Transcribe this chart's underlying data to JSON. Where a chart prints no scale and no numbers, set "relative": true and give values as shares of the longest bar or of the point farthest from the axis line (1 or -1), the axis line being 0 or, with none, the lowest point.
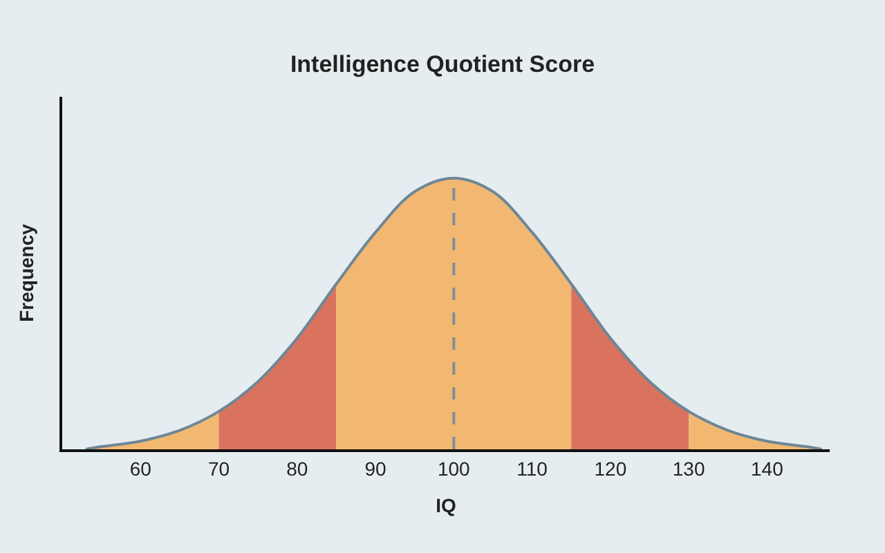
{
  "chart_data": {
    "type": "area",
    "title": "Intelligence Quotient Score",
    "xlabel": "IQ",
    "ylabel": "Frequency",
    "relative": true,
    "xlim": [
      50,
      148
    ],
    "xticks": [
      60,
      70,
      80,
      90,
      100,
      110,
      120,
      130,
      140
    ],
    "grid": false,
    "series": [
      {
        "color": "#f2b872",
        "x": [
          53,
          55,
          60,
          65,
          70
        ],
        "values": [
          0,
          0.01,
          0.03,
          0.07,
          0.14
        ]
      },
      {
        "color": "#d9735e",
        "x": [
          70,
          75,
          80,
          85
        ],
        "values": [
          0.14,
          0.25,
          0.41,
          0.61
        ]
      },
      {
        "color": "#f2b872",
        "x": [
          85,
          90,
          95,
          100,
          105,
          110,
          115
        ],
        "values": [
          0.61,
          0.8,
          0.95,
          1,
          0.95,
          0.8,
          0.61
        ]
      },
      {
        "color": "#d9735e",
        "x": [
          115,
          120,
          125,
          130
        ],
        "values": [
          0.61,
          0.41,
          0.25,
          0.14
        ]
      },
      {
        "color": "#f2b872",
        "x": [
          130,
          135,
          140,
          145,
          147
        ],
        "values": [
          0.14,
          0.07,
          0.03,
          0.01,
          0
        ]
      },
      {
        "type": "line",
        "color": "#6d8797",
        "x": [
          53,
          55,
          60,
          65,
          70,
          75,
          80,
          85,
          90,
          95,
          100,
          105,
          110,
          115,
          120,
          125,
          130,
          135,
          140,
          145,
          147
        ],
        "values": [
          0,
          0.01,
          0.03,
          0.07,
          0.14,
          0.25,
          0.41,
          0.61,
          0.8,
          0.95,
          1,
          0.95,
          0.8,
          0.61,
          0.41,
          0.25,
          0.14,
          0.07,
          0.03,
          0.01,
          0
        ]
      }
    ],
    "ref_lines": [
      {
        "axis": "x",
        "value": 100,
        "line_style": "dashed",
        "color": "#7d8f9a"
      }
    ]
  }
}
